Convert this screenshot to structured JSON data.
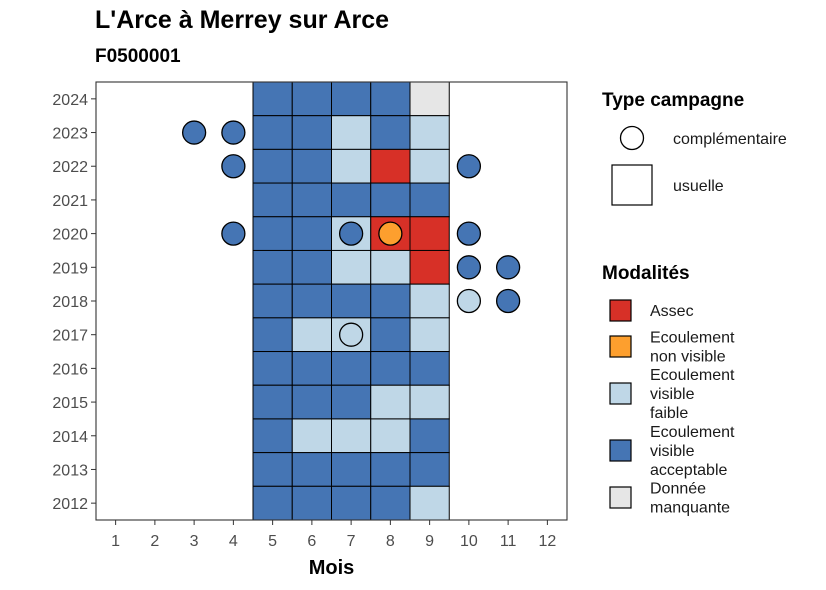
{
  "header": {
    "title": "L'Arce à Merrey sur Arce",
    "subtitle": "F0500001"
  },
  "chart_data": {
    "type": "heatmap",
    "title": "L'Arce à Merrey sur Arce",
    "subtitle": "F0500001",
    "xlabel": "Mois",
    "ylabel": "",
    "x_ticks": [
      "1",
      "2",
      "3",
      "4",
      "5",
      "6",
      "7",
      "8",
      "9",
      "10",
      "11",
      "12"
    ],
    "y_ticks": [
      "2012",
      "2013",
      "2014",
      "2015",
      "2016",
      "2017",
      "2018",
      "2019",
      "2020",
      "2021",
      "2022",
      "2023",
      "2024"
    ],
    "xlim": [
      0.5,
      12.5
    ],
    "ylim": [
      2011.5,
      2024.5
    ],
    "grid": false,
    "legend_position": "right",
    "colors": {
      "Assec": "#d73027",
      "Ecoulement non visible": "#fd9f2e",
      "Ecoulement visible faible": "#bfd7e7",
      "Ecoulement visible acceptable": "#4575b4",
      "Donnée manquante": "#e6e6e6"
    },
    "legend_type": {
      "title": "Type campagne",
      "items": [
        {
          "label": "complémentaire",
          "shape": "circle"
        },
        {
          "label": "usuelle",
          "shape": "square"
        }
      ]
    },
    "legend_modalites": {
      "title": "Modalités",
      "items": [
        {
          "key": "Assec",
          "lines": [
            "Assec"
          ],
          "color": "#d73027"
        },
        {
          "key": "Ecoulement non visible",
          "lines": [
            "Ecoulement",
            "non visible"
          ],
          "color": "#fd9f2e"
        },
        {
          "key": "Ecoulement visible faible",
          "lines": [
            "Ecoulement",
            "visible",
            "faible"
          ],
          "color": "#bfd7e7"
        },
        {
          "key": "Ecoulement visible acceptable",
          "lines": [
            "Ecoulement",
            "visible",
            "acceptable"
          ],
          "color": "#4575b4"
        },
        {
          "key": "Donnée manquante",
          "lines": [
            "Donnée",
            "manquante"
          ],
          "color": "#e6e6e6"
        }
      ]
    },
    "usuelle": [
      {
        "year": 2024,
        "values": [
          "Ecoulement visible acceptable",
          "Ecoulement visible acceptable",
          "Ecoulement visible acceptable",
          "Ecoulement visible acceptable",
          "Donnée manquante"
        ]
      },
      {
        "year": 2023,
        "values": [
          "Ecoulement visible acceptable",
          "Ecoulement visible acceptable",
          "Ecoulement visible faible",
          "Ecoulement visible acceptable",
          "Ecoulement visible faible"
        ]
      },
      {
        "year": 2022,
        "values": [
          "Ecoulement visible acceptable",
          "Ecoulement visible acceptable",
          "Ecoulement visible faible",
          "Assec",
          "Ecoulement visible faible"
        ]
      },
      {
        "year": 2021,
        "values": [
          "Ecoulement visible acceptable",
          "Ecoulement visible acceptable",
          "Ecoulement visible acceptable",
          "Ecoulement visible acceptable",
          "Ecoulement visible acceptable"
        ]
      },
      {
        "year": 2020,
        "values": [
          "Ecoulement visible acceptable",
          "Ecoulement visible acceptable",
          "Ecoulement visible faible",
          "Assec",
          "Assec"
        ]
      },
      {
        "year": 2019,
        "values": [
          "Ecoulement visible acceptable",
          "Ecoulement visible acceptable",
          "Ecoulement visible faible",
          "Ecoulement visible faible",
          "Assec"
        ]
      },
      {
        "year": 2018,
        "values": [
          "Ecoulement visible acceptable",
          "Ecoulement visible acceptable",
          "Ecoulement visible acceptable",
          "Ecoulement visible acceptable",
          "Ecoulement visible faible"
        ]
      },
      {
        "year": 2017,
        "values": [
          "Ecoulement visible acceptable",
          "Ecoulement visible faible",
          "Ecoulement visible faible",
          "Ecoulement visible acceptable",
          "Ecoulement visible faible"
        ]
      },
      {
        "year": 2016,
        "values": [
          "Ecoulement visible acceptable",
          "Ecoulement visible acceptable",
          "Ecoulement visible acceptable",
          "Ecoulement visible acceptable",
          "Ecoulement visible acceptable"
        ]
      },
      {
        "year": 2015,
        "values": [
          "Ecoulement visible acceptable",
          "Ecoulement visible acceptable",
          "Ecoulement visible acceptable",
          "Ecoulement visible faible",
          "Ecoulement visible faible"
        ]
      },
      {
        "year": 2014,
        "values": [
          "Ecoulement visible acceptable",
          "Ecoulement visible faible",
          "Ecoulement visible faible",
          "Ecoulement visible faible",
          "Ecoulement visible acceptable"
        ]
      },
      {
        "year": 2013,
        "values": [
          "Ecoulement visible acceptable",
          "Ecoulement visible acceptable",
          "Ecoulement visible acceptable",
          "Ecoulement visible acceptable",
          "Ecoulement visible acceptable"
        ]
      },
      {
        "year": 2012,
        "values": [
          "Ecoulement visible acceptable",
          "Ecoulement visible acceptable",
          "Ecoulement visible acceptable",
          "Ecoulement visible acceptable",
          "Ecoulement visible faible"
        ]
      }
    ],
    "usuelle_months": [
      5,
      6,
      7,
      8,
      9
    ],
    "complementaire": [
      {
        "year": 2023,
        "month": 3,
        "value": "Ecoulement visible acceptable"
      },
      {
        "year": 2023,
        "month": 4,
        "value": "Ecoulement visible acceptable"
      },
      {
        "year": 2022,
        "month": 4,
        "value": "Ecoulement visible acceptable"
      },
      {
        "year": 2022,
        "month": 10,
        "value": "Ecoulement visible acceptable"
      },
      {
        "year": 2020,
        "month": 4,
        "value": "Ecoulement visible acceptable"
      },
      {
        "year": 2020,
        "month": 7,
        "value": "Ecoulement visible acceptable"
      },
      {
        "year": 2020,
        "month": 8,
        "value": "Ecoulement non visible"
      },
      {
        "year": 2020,
        "month": 10,
        "value": "Ecoulement visible acceptable"
      },
      {
        "year": 2019,
        "month": 10,
        "value": "Ecoulement visible acceptable"
      },
      {
        "year": 2019,
        "month": 11,
        "value": "Ecoulement visible acceptable"
      },
      {
        "year": 2018,
        "month": 10,
        "value": "Ecoulement visible faible"
      },
      {
        "year": 2018,
        "month": 11,
        "value": "Ecoulement visible acceptable"
      },
      {
        "year": 2017,
        "month": 7,
        "value": "Ecoulement visible faible"
      }
    ]
  }
}
